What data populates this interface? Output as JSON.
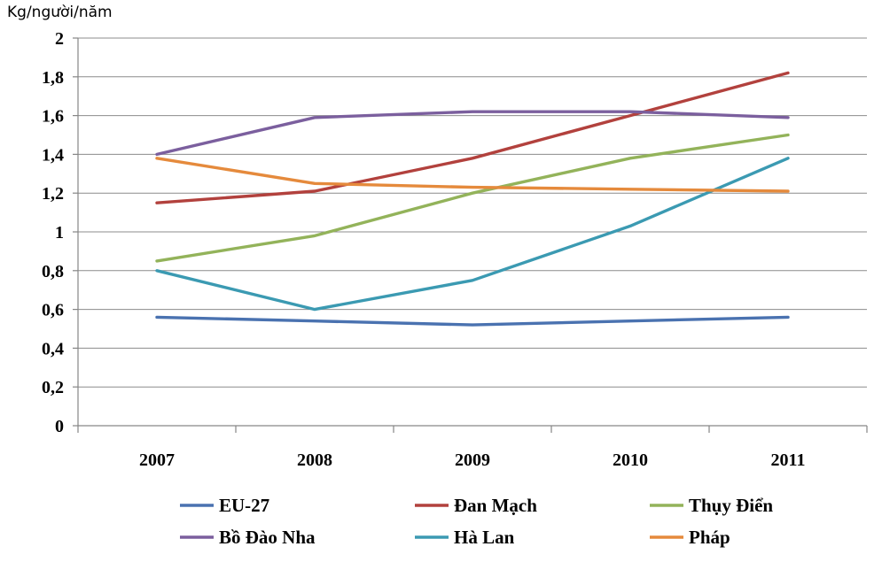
{
  "chart_data": {
    "type": "line",
    "ylabel": "Kg/người/năm",
    "xlabel": "",
    "categories": [
      "2007",
      "2008",
      "2009",
      "2010",
      "2011"
    ],
    "ylim": [
      0,
      2
    ],
    "ytick_step": 0.2,
    "ytick_labels": [
      "0",
      "0,2",
      "0,4",
      "0,6",
      "0,8",
      "1",
      "1,2",
      "1,4",
      "1,6",
      "1,8",
      "2"
    ],
    "grid": true,
    "legend_position": "bottom",
    "series": [
      {
        "name": "EU-27",
        "color": "#4a72b0",
        "values": [
          0.56,
          0.54,
          0.52,
          0.54,
          0.56
        ]
      },
      {
        "name": "Đan Mạch",
        "color": "#b2413d",
        "values": [
          1.15,
          1.21,
          1.38,
          1.6,
          1.82
        ]
      },
      {
        "name": "Thụy Điển",
        "color": "#93b35a",
        "values": [
          0.85,
          0.98,
          1.2,
          1.38,
          1.5
        ]
      },
      {
        "name": "Bồ Đào Nha",
        "color": "#7b5f9e",
        "values": [
          1.4,
          1.59,
          1.62,
          1.62,
          1.59
        ]
      },
      {
        "name": "Hà Lan",
        "color": "#3b9ab2",
        "values": [
          0.8,
          0.6,
          0.75,
          1.03,
          1.38
        ]
      },
      {
        "name": "Pháp",
        "color": "#e58a3c",
        "values": [
          1.38,
          1.25,
          1.23,
          1.22,
          1.21
        ]
      }
    ]
  }
}
